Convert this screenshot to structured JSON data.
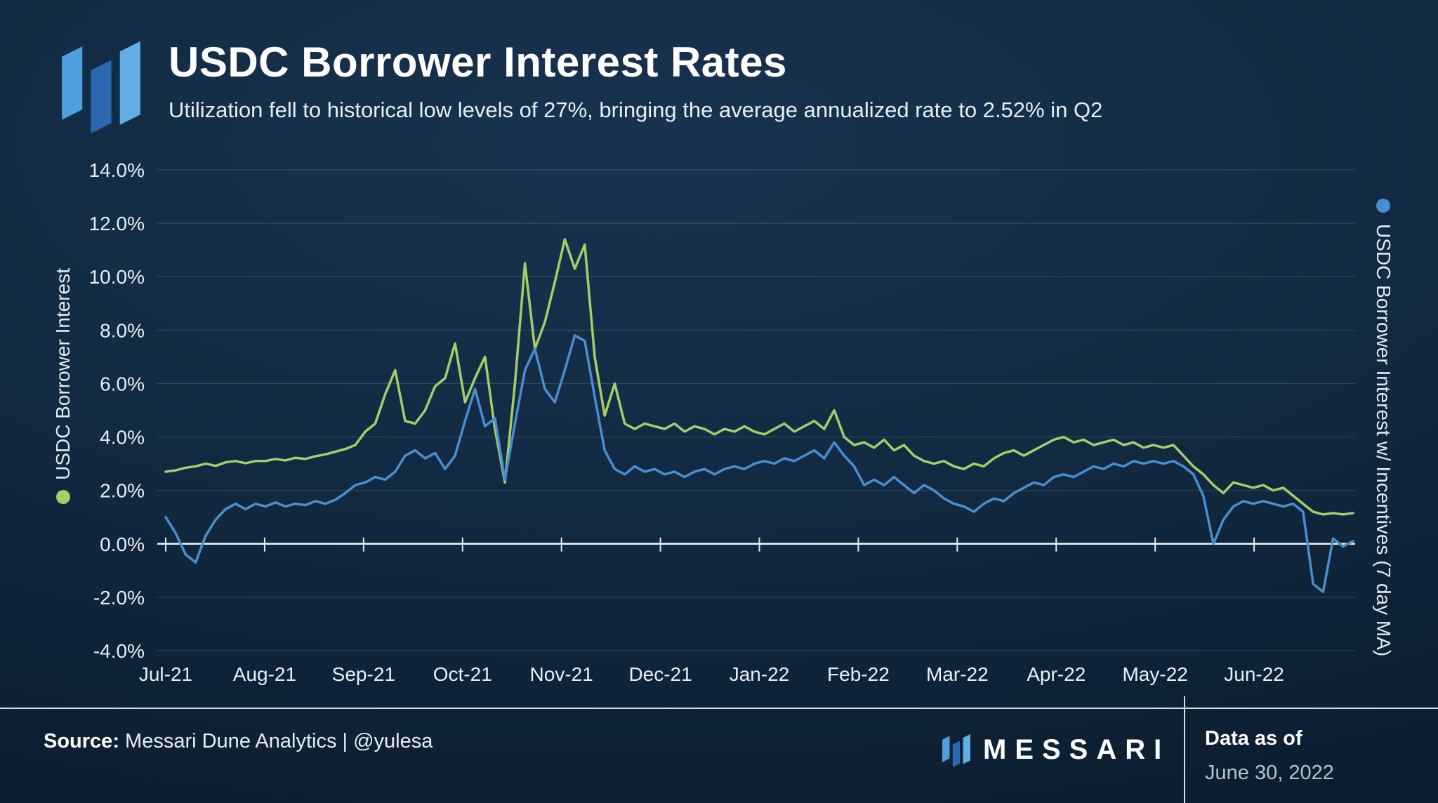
{
  "header": {
    "title": "USDC Borrower Interest Rates",
    "subtitle": "Utilization fell to historical low levels of 27%, bringing the average annualized rate to 2.52% in Q2"
  },
  "footer": {
    "source_label": "Source:",
    "source_text": " Messari Dune Analytics | @yulesa",
    "brand": "MESSARI",
    "data_as_of_label": "Data as of",
    "data_as_of_value": "June 30, 2022"
  },
  "colors": {
    "green_series": "#a5cd68",
    "blue_series": "#478fd1",
    "logo_left": "#4E9FDD",
    "logo_mid": "#2A68B2",
    "logo_right": "#62AEE4"
  },
  "chart_data": {
    "type": "line",
    "title": "USDC Borrower Interest Rates",
    "xlabel": "",
    "ylabel": "USDC Borrower Interest",
    "ylim": [
      -4,
      14
    ],
    "grid": "horizontal",
    "legend_position": "vertical side labels",
    "x_tick_labels": [
      "Jul-21",
      "Aug-21",
      "Sep-21",
      "Oct-21",
      "Nov-21",
      "Dec-21",
      "Jan-22",
      "Feb-22",
      "Mar-22",
      "Apr-22",
      "May-22",
      "Jun-22"
    ],
    "y_ticks": [
      14,
      12,
      10,
      8,
      6,
      4,
      2,
      0,
      -2,
      -4
    ],
    "y_tick_labels": [
      "14.0%",
      "12.0%",
      "10.0%",
      "8.0%",
      "6.0%",
      "4.0%",
      "2.0%",
      "0.0%",
      "-2.0%",
      "-4.0%"
    ],
    "x_unit": "weekly samples, Jul 2021 through Jun 2022 (values in % APR)",
    "series": [
      {
        "name": "USDC Borrower Interest",
        "color": "#a5cd68",
        "label_side": "left",
        "values": [
          2.7,
          2.75,
          2.85,
          2.9,
          3.0,
          2.92,
          3.05,
          3.1,
          3.02,
          3.1,
          3.1,
          3.18,
          3.12,
          3.22,
          3.18,
          3.28,
          3.35,
          3.45,
          3.55,
          3.7,
          4.2,
          4.5,
          5.6,
          6.5,
          4.6,
          4.5,
          5.0,
          5.9,
          6.2,
          7.5,
          5.3,
          6.2,
          7.0,
          4.3,
          2.3,
          6.0,
          10.5,
          7.3,
          8.3,
          9.8,
          11.4,
          10.3,
          11.2,
          7.0,
          4.8,
          6.0,
          4.5,
          4.3,
          4.5,
          4.4,
          4.3,
          4.5,
          4.2,
          4.4,
          4.3,
          4.1,
          4.3,
          4.2,
          4.4,
          4.2,
          4.1,
          4.3,
          4.5,
          4.2,
          4.4,
          4.6,
          4.3,
          5.0,
          4.0,
          3.7,
          3.8,
          3.6,
          3.9,
          3.5,
          3.7,
          3.3,
          3.1,
          3.0,
          3.1,
          2.9,
          2.8,
          3.0,
          2.9,
          3.2,
          3.4,
          3.5,
          3.3,
          3.5,
          3.7,
          3.9,
          4.0,
          3.8,
          3.9,
          3.7,
          3.8,
          3.9,
          3.7,
          3.8,
          3.6,
          3.7,
          3.6,
          3.7,
          3.3,
          2.9,
          2.6,
          2.2,
          1.9,
          2.3,
          2.2,
          2.1,
          2.2,
          2.0,
          2.1,
          1.8,
          1.5,
          1.2,
          1.1,
          1.15,
          1.1,
          1.15
        ]
      },
      {
        "name": "USDC Borrower Interest w/ Incentives (7 day MA)",
        "color": "#478fd1",
        "label_side": "right",
        "values": [
          1.0,
          0.4,
          -0.4,
          -0.7,
          0.3,
          0.9,
          1.3,
          1.5,
          1.3,
          1.5,
          1.4,
          1.55,
          1.4,
          1.5,
          1.45,
          1.6,
          1.5,
          1.65,
          1.9,
          2.2,
          2.3,
          2.5,
          2.4,
          2.7,
          3.3,
          3.5,
          3.2,
          3.4,
          2.8,
          3.3,
          4.6,
          5.8,
          4.4,
          4.7,
          2.4,
          4.5,
          6.5,
          7.3,
          5.8,
          5.3,
          6.5,
          7.8,
          7.6,
          5.5,
          3.5,
          2.8,
          2.6,
          2.9,
          2.7,
          2.8,
          2.6,
          2.7,
          2.5,
          2.7,
          2.8,
          2.6,
          2.8,
          2.9,
          2.8,
          3.0,
          3.1,
          3.0,
          3.2,
          3.1,
          3.3,
          3.5,
          3.2,
          3.8,
          3.3,
          2.9,
          2.2,
          2.4,
          2.2,
          2.5,
          2.2,
          1.9,
          2.2,
          2.0,
          1.7,
          1.5,
          1.4,
          1.2,
          1.5,
          1.7,
          1.6,
          1.9,
          2.1,
          2.3,
          2.2,
          2.5,
          2.6,
          2.5,
          2.7,
          2.9,
          2.8,
          3.0,
          2.9,
          3.1,
          3.0,
          3.1,
          3.0,
          3.1,
          2.9,
          2.6,
          1.8,
          0.0,
          0.9,
          1.4,
          1.6,
          1.5,
          1.6,
          1.5,
          1.4,
          1.5,
          1.2,
          -1.5,
          -1.8,
          0.2,
          -0.1,
          0.1
        ]
      }
    ]
  }
}
